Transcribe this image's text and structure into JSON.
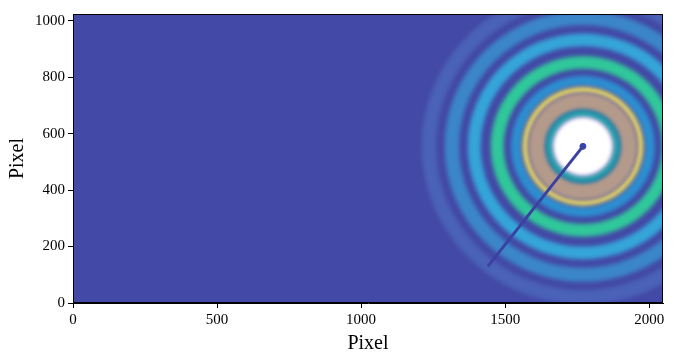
{
  "chart_data": {
    "type": "heatmap",
    "x_label": "Pixel",
    "y_label": "Pixel",
    "xlim": [
      0,
      2048
    ],
    "xticks": [
      0,
      500,
      1000,
      1500,
      2000
    ],
    "ylim": [
      0,
      1024
    ],
    "yticks": [
      0,
      200,
      400,
      600,
      800,
      1000
    ],
    "grid": false,
    "color": "#4349a6",
    "beam_center": {
      "x": 1770,
      "y": 555,
      "color": "#3a44b0"
    },
    "beam_stop": {
      "x": [
        1770,
        1440
      ],
      "y": [
        555,
        130
      ],
      "color": "#3b41a0"
    },
    "rings": [
      {
        "inner_radius": 510,
        "outer_radius": 560,
        "color": "#4a62b8"
      },
      {
        "inner_radius": 430,
        "outer_radius": 480,
        "color": "#3b86c8"
      },
      {
        "inner_radius": 355,
        "outer_radius": 400,
        "color": "#35a5d8"
      },
      {
        "inner_radius": 275,
        "outer_radius": 320,
        "color": "#30c89a"
      },
      {
        "inner_radius": 215,
        "outer_radius": 250,
        "color": "#2c8fd0"
      },
      {
        "inner_radius": 190,
        "outer_radius": 210,
        "color": "#f0e060"
      },
      {
        "inner_radius": 130,
        "outer_radius": 190,
        "color": "#b49a8a"
      },
      {
        "inner_radius": 105,
        "outer_radius": 130,
        "color": "#20a0a8"
      },
      {
        "inner_radius": 0,
        "outer_radius": 105,
        "color": "#ffffff"
      }
    ]
  }
}
